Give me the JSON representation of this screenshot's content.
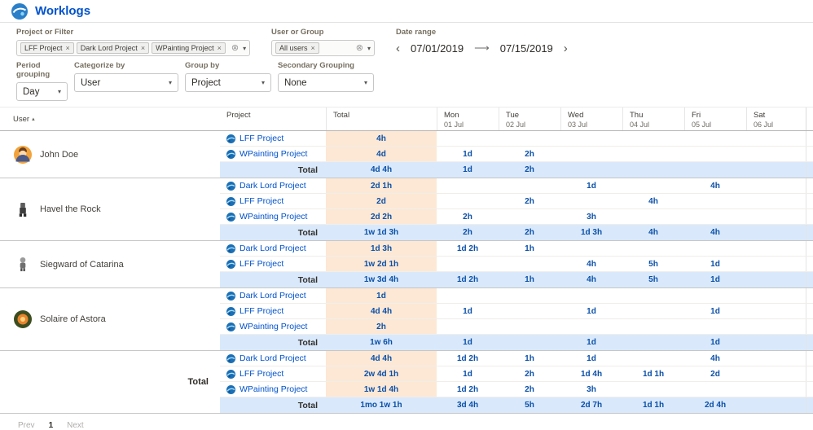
{
  "header": {
    "title": "Worklogs"
  },
  "colors": {
    "accent": "#0052cc",
    "value_text": "#0a4fa8",
    "total_column_bg": "#fce8d5",
    "total_row_bg": "#d9e9fb"
  },
  "filters": {
    "project": {
      "label": "Project or Filter",
      "chips": [
        "LFF Project",
        "Dark Lord Project",
        "WPainting Project"
      ]
    },
    "user": {
      "label": "User or Group",
      "chips": [
        "All users"
      ]
    },
    "date": {
      "label": "Date range",
      "from": "07/01/2019",
      "to": "07/15/2019"
    },
    "period": {
      "label": "Period grouping",
      "value": "Day"
    },
    "categorize": {
      "label": "Categorize by",
      "value": "User"
    },
    "group": {
      "label": "Group by",
      "value": "Project"
    },
    "secondary": {
      "label": "Secondary Grouping",
      "value": "None"
    }
  },
  "table": {
    "user_header": "User",
    "project_header": "Project",
    "total_header": "Total",
    "total_label": "Total",
    "days": [
      {
        "name": "Mon",
        "date": "01 Jul"
      },
      {
        "name": "Tue",
        "date": "02 Jul"
      },
      {
        "name": "Wed",
        "date": "03 Jul"
      },
      {
        "name": "Thu",
        "date": "04 Jul"
      },
      {
        "name": "Fri",
        "date": "05 Jul"
      },
      {
        "name": "Sat",
        "date": "06 Jul"
      }
    ],
    "groups": [
      {
        "user": "John Doe",
        "avatar": "john-doe",
        "rows": [
          {
            "project": "LFF Project",
            "total": "4h",
            "days": [
              "",
              "",
              "",
              "",
              "",
              ""
            ]
          },
          {
            "project": "WPainting Project",
            "total": "4d",
            "days": [
              "1d",
              "2h",
              "",
              "",
              "",
              ""
            ]
          }
        ],
        "total": {
          "total": "4d 4h",
          "days": [
            "1d",
            "2h",
            "",
            "",
            "",
            ""
          ]
        }
      },
      {
        "user": "Havel the Rock",
        "avatar": "havel",
        "rows": [
          {
            "project": "Dark Lord Project",
            "total": "2d 1h",
            "days": [
              "",
              "",
              "1d",
              "",
              "4h",
              ""
            ]
          },
          {
            "project": "LFF Project",
            "total": "2d",
            "days": [
              "",
              "2h",
              "",
              "4h",
              "",
              ""
            ]
          },
          {
            "project": "WPainting Project",
            "total": "2d 2h",
            "days": [
              "2h",
              "",
              "3h",
              "",
              "",
              ""
            ]
          }
        ],
        "total": {
          "total": "1w 1d 3h",
          "days": [
            "2h",
            "2h",
            "1d 3h",
            "4h",
            "4h",
            ""
          ]
        }
      },
      {
        "user": "Siegward of Catarina",
        "avatar": "siegward",
        "rows": [
          {
            "project": "Dark Lord Project",
            "total": "1d 3h",
            "days": [
              "1d 2h",
              "1h",
              "",
              "",
              "",
              ""
            ]
          },
          {
            "project": "LFF Project",
            "total": "1w 2d 1h",
            "days": [
              "",
              "",
              "4h",
              "5h",
              "1d",
              ""
            ]
          }
        ],
        "total": {
          "total": "1w 3d 4h",
          "days": [
            "1d 2h",
            "1h",
            "4h",
            "5h",
            "1d",
            ""
          ]
        }
      },
      {
        "user": "Solaire of Astora",
        "avatar": "solaire",
        "rows": [
          {
            "project": "Dark Lord Project",
            "total": "1d",
            "days": [
              "",
              "",
              "",
              "",
              "",
              ""
            ]
          },
          {
            "project": "LFF Project",
            "total": "4d 4h",
            "days": [
              "1d",
              "",
              "1d",
              "",
              "1d",
              ""
            ]
          },
          {
            "project": "WPainting Project",
            "total": "2h",
            "days": [
              "",
              "",
              "",
              "",
              "",
              ""
            ]
          }
        ],
        "total": {
          "total": "1w 6h",
          "days": [
            "1d",
            "",
            "1d",
            "",
            "1d",
            ""
          ]
        }
      },
      {
        "user": "Total",
        "grand": true,
        "rows": [
          {
            "project": "Dark Lord Project",
            "total": "4d 4h",
            "days": [
              "1d 2h",
              "1h",
              "1d",
              "",
              "4h",
              ""
            ]
          },
          {
            "project": "LFF Project",
            "total": "2w 4d 1h",
            "days": [
              "1d",
              "2h",
              "1d 4h",
              "1d 1h",
              "2d",
              ""
            ]
          },
          {
            "project": "WPainting Project",
            "total": "1w 1d 4h",
            "days": [
              "1d 2h",
              "2h",
              "3h",
              "",
              "",
              ""
            ]
          }
        ],
        "total": {
          "total": "1mo 1w 1h",
          "days": [
            "3d 4h",
            "5h",
            "2d 7h",
            "1d 1h",
            "2d 4h",
            ""
          ]
        }
      }
    ]
  },
  "pagination": {
    "prev": "Prev",
    "page": "1",
    "next": "Next"
  }
}
